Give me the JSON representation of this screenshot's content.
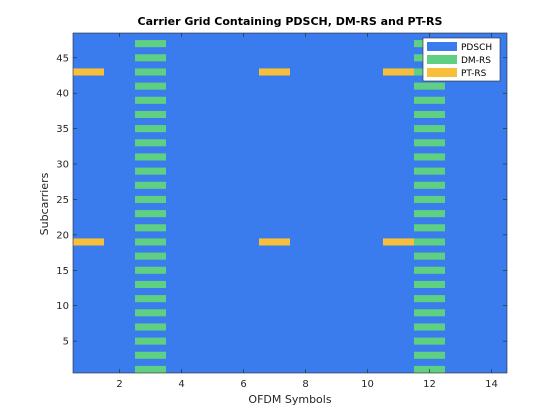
{
  "chart_data": {
    "type": "heatmap",
    "title": "Carrier Grid Containing PDSCH, DM-RS and PT-RS",
    "xlabel": "OFDM Symbols",
    "ylabel": "Subcarriers",
    "xlim": [
      0.5,
      14.5
    ],
    "ylim": [
      0.5,
      48.5
    ],
    "xticks": [
      2,
      4,
      6,
      8,
      10,
      12,
      14
    ],
    "yticks": [
      5,
      10,
      15,
      20,
      25,
      30,
      35,
      40,
      45
    ],
    "legend": {
      "position": "top-right",
      "entries": [
        {
          "label": "PDSCH",
          "color": "#3a7cee"
        },
        {
          "label": "DM-RS",
          "color": "#5fcf82"
        },
        {
          "label": "PT-RS",
          "color": "#f7bf3a"
        }
      ]
    },
    "background_series": "PDSCH",
    "dmrs": {
      "symbols": [
        3,
        12
      ],
      "subcarriers": [
        1,
        3,
        5,
        7,
        9,
        11,
        13,
        15,
        17,
        19,
        21,
        23,
        25,
        27,
        29,
        31,
        33,
        35,
        37,
        39,
        41,
        43,
        45,
        47
      ]
    },
    "ptrs": {
      "symbols": [
        1,
        7,
        11
      ],
      "subcarriers": [
        19,
        43
      ]
    }
  }
}
